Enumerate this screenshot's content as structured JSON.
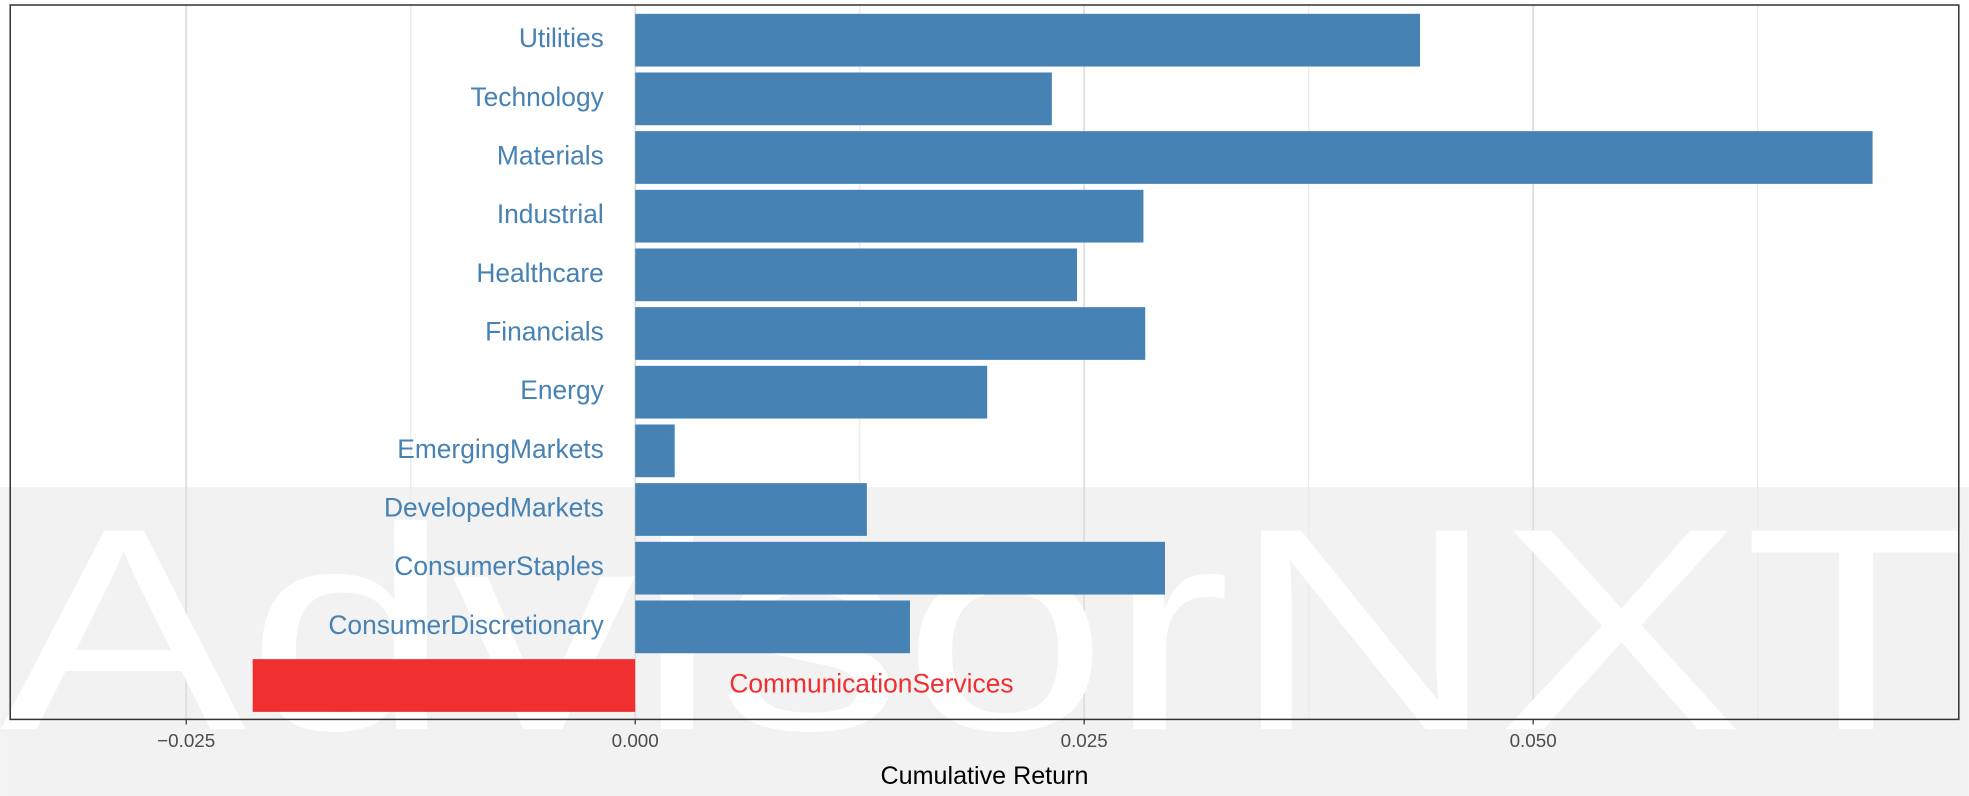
{
  "chart_data": {
    "type": "hbar",
    "watermark": "AdvisorNXT",
    "x_label": "Cumulative Return",
    "categories": [
      "Utilities",
      "Technology",
      "Materials",
      "Industrial",
      "Healthcare",
      "Financials",
      "Energy",
      "EmergingMarkets",
      "DevelopedMarkets",
      "ConsumerStaples",
      "ConsumerDiscretionary",
      "CommunicationServices"
    ],
    "values": [
      0.0437,
      0.0232,
      0.0689,
      0.0283,
      0.0246,
      0.0284,
      0.0196,
      0.0022,
      0.0129,
      0.0295,
      0.0153,
      -0.0213
    ],
    "colors": [
      "#4682b4",
      "#4682b4",
      "#4682b4",
      "#4682b4",
      "#4682b4",
      "#4682b4",
      "#4682b4",
      "#4682b4",
      "#4682b4",
      "#4682b4",
      "#4682b4",
      "#f03030"
    ],
    "xlim": [
      -0.0348,
      0.0737
    ],
    "xticks": [
      {
        "value": -0.025,
        "label": "−0.025"
      },
      {
        "value": 0,
        "label": "0.000"
      },
      {
        "value": 0.025,
        "label": "0.025"
      },
      {
        "value": 0.05,
        "label": "0.050"
      }
    ],
    "grid": true
  }
}
